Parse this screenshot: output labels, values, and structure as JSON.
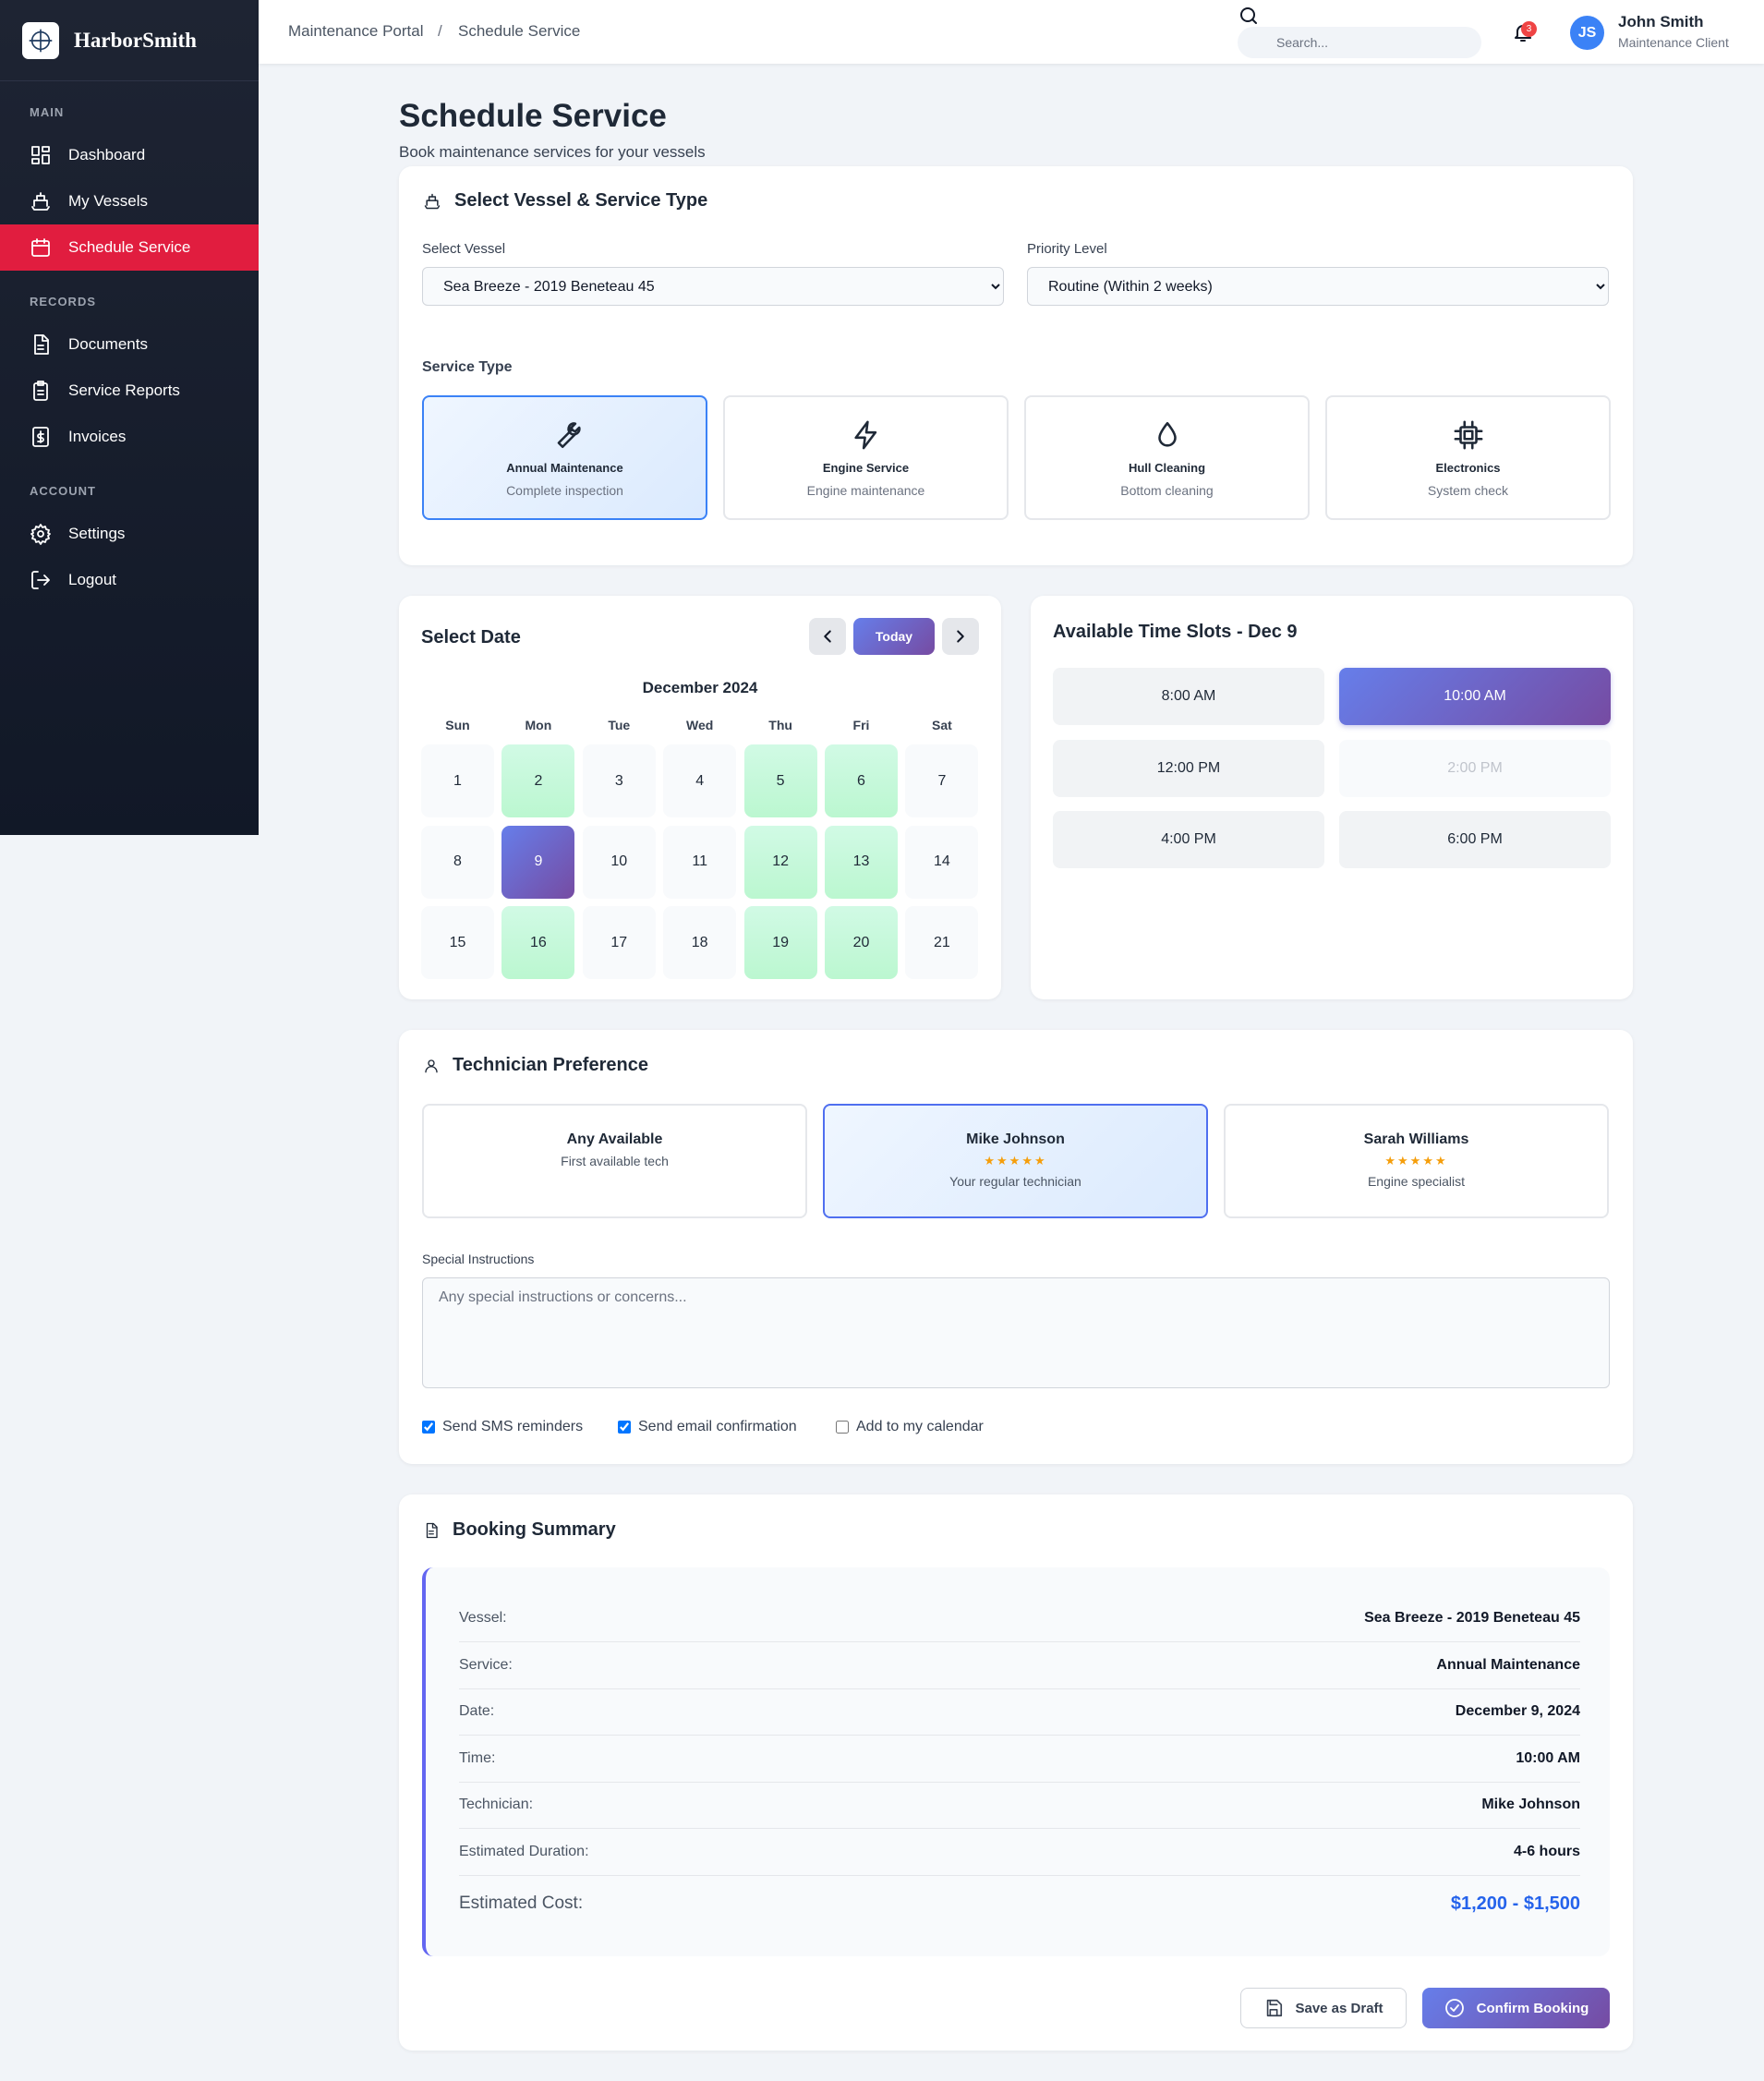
{
  "sidebar": {
    "brand": "HarborSmith",
    "sections": [
      {
        "title": "MAIN",
        "items": [
          {
            "label": "Dashboard",
            "active": false
          },
          {
            "label": "My Vessels",
            "active": false
          },
          {
            "label": "Schedule Service",
            "active": true
          }
        ]
      },
      {
        "title": "RECORDS",
        "items": [
          {
            "label": "Documents",
            "active": false
          },
          {
            "label": "Service Reports",
            "active": false
          },
          {
            "label": "Invoices",
            "active": false
          }
        ]
      },
      {
        "title": "ACCOUNT",
        "items": [
          {
            "label": "Settings",
            "active": false
          },
          {
            "label": "Logout",
            "active": false
          }
        ]
      }
    ]
  },
  "topbar": {
    "breadcrumb": [
      "Maintenance Portal",
      "Schedule Service"
    ],
    "search_placeholder": "Search...",
    "notifications": 3,
    "user": {
      "initials": "JS",
      "name": "John Smith",
      "role": "Maintenance Client"
    }
  },
  "page": {
    "title": "Schedule Service",
    "subtitle": "Book maintenance services for your vessels"
  },
  "vessel_service": {
    "title": "Select Vessel & Service Type",
    "vessel_label": "Select Vessel",
    "vessel": "Sea Breeze - 2019 Beneteau 45",
    "priority_label": "Priority Level",
    "priority": "Routine (Within 2 weeks)",
    "service_type_label": "Service Type",
    "services": [
      {
        "name": "Annual Maintenance",
        "desc": "Complete inspection",
        "selected": true
      },
      {
        "name": "Engine Service",
        "desc": "Engine maintenance",
        "selected": false
      },
      {
        "name": "Hull Cleaning",
        "desc": "Bottom cleaning",
        "selected": false
      },
      {
        "name": "Electronics",
        "desc": "System check",
        "selected": false
      }
    ]
  },
  "calendar": {
    "title": "Select Date",
    "today": "Today",
    "month": "December 2024",
    "weekdays": [
      "Sun",
      "Mon",
      "Tue",
      "Wed",
      "Thu",
      "Fri",
      "Sat"
    ],
    "days": [
      {
        "day": 1,
        "state": "default"
      },
      {
        "day": 2,
        "state": "available"
      },
      {
        "day": 3,
        "state": "default"
      },
      {
        "day": 4,
        "state": "default"
      },
      {
        "day": 5,
        "state": "available"
      },
      {
        "day": 6,
        "state": "available"
      },
      {
        "day": 7,
        "state": "default"
      },
      {
        "day": 8,
        "state": "default"
      },
      {
        "day": 9,
        "state": "selected"
      },
      {
        "day": 10,
        "state": "default"
      },
      {
        "day": 11,
        "state": "default"
      },
      {
        "day": 12,
        "state": "available"
      },
      {
        "day": 13,
        "state": "available"
      },
      {
        "day": 14,
        "state": "default"
      },
      {
        "day": 15,
        "state": "default"
      },
      {
        "day": 16,
        "state": "available"
      },
      {
        "day": 17,
        "state": "default"
      },
      {
        "day": 18,
        "state": "default"
      },
      {
        "day": 19,
        "state": "available"
      },
      {
        "day": 20,
        "state": "available"
      },
      {
        "day": 21,
        "state": "default"
      }
    ]
  },
  "time_slots": {
    "title": "Available Time Slots - Dec 9",
    "slots": [
      {
        "time": "8:00 AM",
        "state": "open"
      },
      {
        "time": "10:00 AM",
        "state": "selected"
      },
      {
        "time": "12:00 PM",
        "state": "open"
      },
      {
        "time": "2:00 PM",
        "state": "booked"
      },
      {
        "time": "4:00 PM",
        "state": "open"
      },
      {
        "time": "6:00 PM",
        "state": "open"
      }
    ]
  },
  "technician": {
    "title": "Technician Preference",
    "options": [
      {
        "name": "Any Available",
        "desc": "First available tech",
        "selected": false
      },
      {
        "name": "Mike Johnson",
        "rating": "★★★★★",
        "desc": "Your regular technician",
        "selected": true
      },
      {
        "name": "Sarah Williams",
        "rating": "★★★★★",
        "desc": "Engine specialist",
        "selected": false
      }
    ],
    "instructions_label": "Special Instructions",
    "instructions_placeholder": "Any special instructions or concerns...",
    "checks": [
      {
        "label": "Send SMS reminders",
        "checked": true
      },
      {
        "label": "Send email confirmation",
        "checked": true
      },
      {
        "label": "Add to my calendar",
        "checked": false
      }
    ]
  },
  "summary": {
    "title": "Booking Summary",
    "rows": [
      {
        "label": "Vessel:",
        "value": "Sea Breeze - 2019 Beneteau 45"
      },
      {
        "label": "Service:",
        "value": "Annual Maintenance"
      },
      {
        "label": "Date:",
        "value": "December 9, 2024"
      },
      {
        "label": "Time:",
        "value": "10:00 AM"
      },
      {
        "label": "Technician:",
        "value": "Mike Johnson"
      },
      {
        "label": "Estimated Duration:",
        "value": "4-6 hours"
      }
    ],
    "total": {
      "label": "Estimated Cost:",
      "value": "$1,200 - $1,500"
    },
    "actions": {
      "draft": "Save as Draft",
      "confirm": "Confirm Booking"
    }
  }
}
